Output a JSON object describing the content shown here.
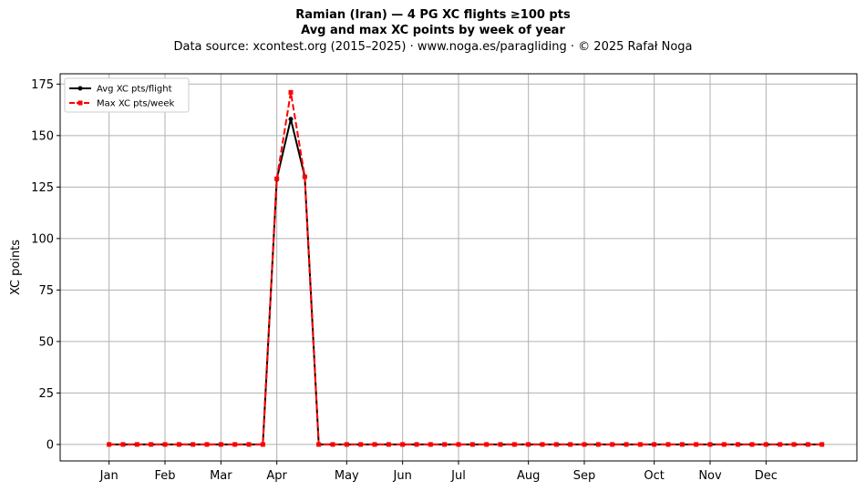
{
  "header": {
    "title_line1": "Ramian (Iran)  —  4 PG XC flights ≥100 pts",
    "title_line2": "Avg and max XC points by week of year",
    "subtitle": "Data source: xcontest.org (2015–2025)  ·  www.noga.es/paragliding  ·  © 2025 Rafał Noga"
  },
  "chart_data": {
    "type": "line",
    "title": "Ramian (Iran)  —  4 PG XC flights ≥100 pts",
    "subtitle": "Avg and max XC points by week of year",
    "xlabel": "",
    "ylabel": "XC points",
    "ylim": [
      -8,
      180
    ],
    "yticks": [
      0,
      25,
      50,
      75,
      100,
      125,
      150,
      175
    ],
    "xlim": [
      -2.5,
      54.5
    ],
    "x": [
      1,
      2,
      3,
      4,
      5,
      6,
      7,
      8,
      9,
      10,
      11,
      12,
      13,
      14,
      15,
      16,
      17,
      18,
      19,
      20,
      21,
      22,
      23,
      24,
      25,
      26,
      27,
      28,
      29,
      30,
      31,
      32,
      33,
      34,
      35,
      36,
      37,
      38,
      39,
      40,
      41,
      42,
      43,
      44,
      45,
      46,
      47,
      48,
      49,
      50,
      51,
      52
    ],
    "xticks": [
      {
        "label": "Jan",
        "week": 1
      },
      {
        "label": "Feb",
        "week": 5
      },
      {
        "label": "Mar",
        "week": 9
      },
      {
        "label": "Apr",
        "week": 13
      },
      {
        "label": "May",
        "week": 18
      },
      {
        "label": "Jun",
        "week": 22
      },
      {
        "label": "Jul",
        "week": 26
      },
      {
        "label": "Aug",
        "week": 31
      },
      {
        "label": "Sep",
        "week": 35
      },
      {
        "label": "Oct",
        "week": 40
      },
      {
        "label": "Nov",
        "week": 44
      },
      {
        "label": "Dec",
        "week": 48
      }
    ],
    "grid": true,
    "legend_position": "top-left",
    "series": [
      {
        "name": "Avg XC pts/flight",
        "color": "#000000",
        "style": "solid",
        "marker": "circle",
        "values": [
          0,
          0,
          0,
          0,
          0,
          0,
          0,
          0,
          0,
          0,
          0,
          0,
          129,
          158,
          130,
          0,
          0,
          0,
          0,
          0,
          0,
          0,
          0,
          0,
          0,
          0,
          0,
          0,
          0,
          0,
          0,
          0,
          0,
          0,
          0,
          0,
          0,
          0,
          0,
          0,
          0,
          0,
          0,
          0,
          0,
          0,
          0,
          0,
          0,
          0,
          0,
          0
        ]
      },
      {
        "name": "Max XC pts/week",
        "color": "#ff0000",
        "style": "dashed",
        "marker": "square",
        "values": [
          0,
          0,
          0,
          0,
          0,
          0,
          0,
          0,
          0,
          0,
          0,
          0,
          129,
          171,
          130,
          0,
          0,
          0,
          0,
          0,
          0,
          0,
          0,
          0,
          0,
          0,
          0,
          0,
          0,
          0,
          0,
          0,
          0,
          0,
          0,
          0,
          0,
          0,
          0,
          0,
          0,
          0,
          0,
          0,
          0,
          0,
          0,
          0,
          0,
          0,
          0,
          0
        ]
      }
    ]
  }
}
